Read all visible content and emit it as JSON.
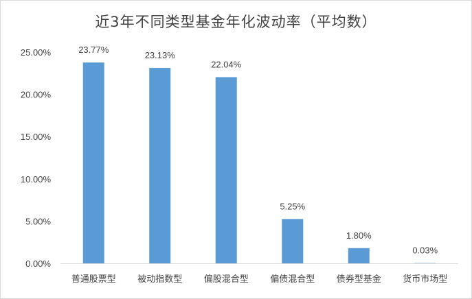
{
  "chart_data": {
    "type": "bar",
    "title": "近3年不同类型基金年化波动率（平均数）",
    "xlabel": "",
    "ylabel": "",
    "categories": [
      "普通股票型",
      "被动指数型",
      "偏股混合型",
      "偏债混合型",
      "债券型基金",
      "货币市场型"
    ],
    "values": [
      23.77,
      23.13,
      22.04,
      5.25,
      1.8,
      0.03
    ],
    "data_labels": [
      "23.77%",
      "23.13%",
      "22.04%",
      "5.25%",
      "1.80%",
      "0.03%"
    ],
    "y_ticks": [
      0,
      5,
      10,
      15,
      20,
      25
    ],
    "y_tick_labels": [
      "0.00%",
      "5.00%",
      "10.00%",
      "15.00%",
      "20.00%",
      "25.00%"
    ],
    "ylim": [
      0,
      25
    ],
    "grid": false,
    "legend": "none",
    "bar_color": "#5b9bd5",
    "axis_color": "#d9d9d9",
    "text_color": "#404040"
  }
}
